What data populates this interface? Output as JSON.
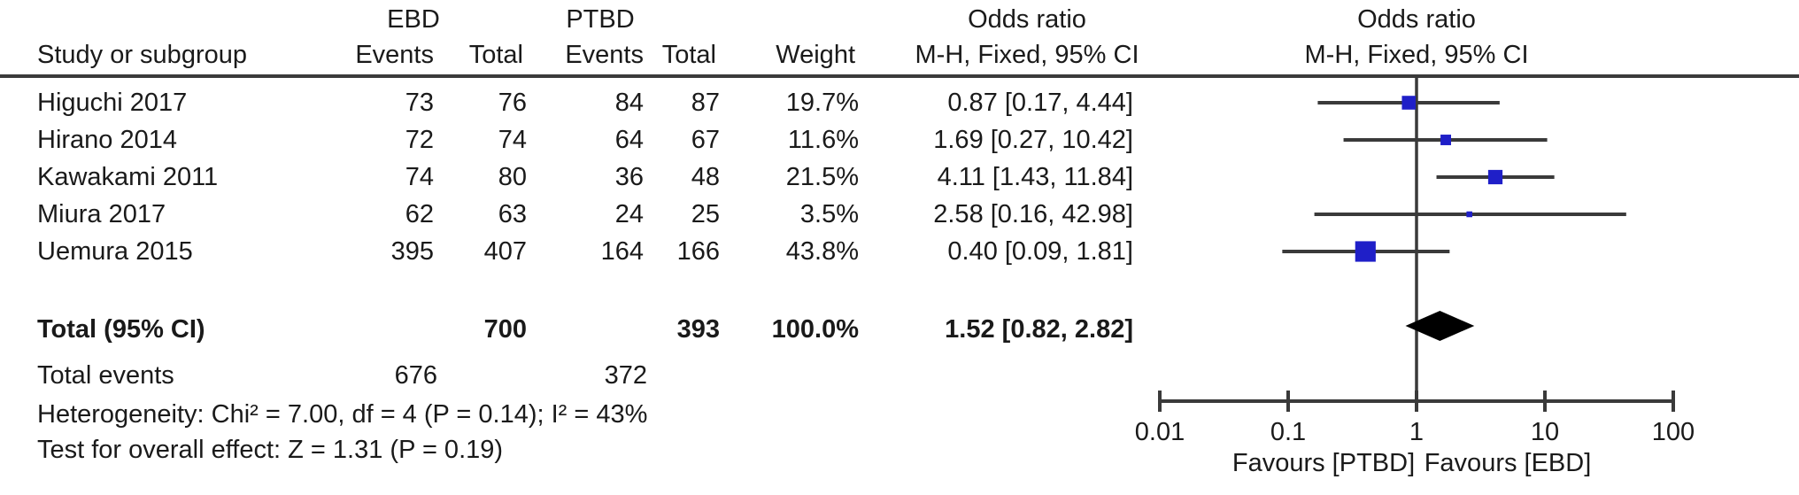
{
  "table": {
    "group_headers": {
      "ebd": "EBD",
      "ptbd": "PTBD",
      "odds_ratio_left": "Odds ratio",
      "odds_ratio_right": "Odds ratio"
    },
    "col_headers": {
      "study": "Study or subgroup",
      "ebd_events": "Events",
      "ebd_total": "Total",
      "ptbd_events": "Events",
      "ptbd_total": "Total",
      "weight": "Weight",
      "mh_left": "M-H, Fixed, 95% CI",
      "mh_right": "M-H, Fixed, 95% CI"
    },
    "rows": [
      {
        "study": "Higuchi 2017",
        "ebd_events": "73",
        "ebd_total": "76",
        "ptbd_events": "84",
        "ptbd_total": "87",
        "weight": "19.7%",
        "or_text": "0.87 [0.17, 4.44]"
      },
      {
        "study": "Hirano 2014",
        "ebd_events": "72",
        "ebd_total": "74",
        "ptbd_events": "64",
        "ptbd_total": "67",
        "weight": "11.6%",
        "or_text": "1.69 [0.27, 10.42]"
      },
      {
        "study": "Kawakami 2011",
        "ebd_events": "74",
        "ebd_total": "80",
        "ptbd_events": "36",
        "ptbd_total": "48",
        "weight": "21.5%",
        "or_text": "4.11 [1.43, 11.84]"
      },
      {
        "study": "Miura 2017",
        "ebd_events": "62",
        "ebd_total": "63",
        "ptbd_events": "24",
        "ptbd_total": "25",
        "weight": "3.5%",
        "or_text": "2.58 [0.16, 42.98]"
      },
      {
        "study": "Uemura 2015",
        "ebd_events": "395",
        "ebd_total": "407",
        "ptbd_events": "164",
        "ptbd_total": "166",
        "weight": "43.8%",
        "or_text": "0.40 [0.09, 1.81]"
      }
    ],
    "total_row": {
      "label": "Total (95% CI)",
      "ebd_total": "700",
      "ptbd_total": "393",
      "weight": "100.0%",
      "or_text": "1.52 [0.82, 2.82]"
    },
    "total_events": {
      "label": "Total events",
      "ebd": "676",
      "ptbd": "372"
    },
    "heterogeneity": "Heterogeneity: Chi² = 7.00, df = 4 (P = 0.14); I² = 43%",
    "overall_effect": "Test for overall effect: Z = 1.31 (P = 0.19)"
  },
  "chart_data": {
    "type": "scatter",
    "subtype": "forest-plot",
    "title": "Odds ratio, M-H, Fixed, 95% CI",
    "x_scale": "log10",
    "xlim": [
      0.01,
      100
    ],
    "axis_ticks": [
      0.01,
      0.1,
      1,
      10,
      100
    ],
    "axis_tick_labels": [
      "0.01",
      "0.1",
      "1",
      "10",
      "100"
    ],
    "null_line": 1,
    "studies": [
      {
        "name": "Higuchi 2017",
        "or": 0.87,
        "ci_low": 0.17,
        "ci_high": 4.44,
        "weight_pct": 19.7
      },
      {
        "name": "Hirano 2014",
        "or": 1.69,
        "ci_low": 0.27,
        "ci_high": 10.42,
        "weight_pct": 11.6
      },
      {
        "name": "Kawakami 2011",
        "or": 4.11,
        "ci_low": 1.43,
        "ci_high": 11.84,
        "weight_pct": 21.5
      },
      {
        "name": "Miura 2017",
        "or": 2.58,
        "ci_low": 0.16,
        "ci_high": 42.98,
        "weight_pct": 3.5
      },
      {
        "name": "Uemura 2015",
        "or": 0.4,
        "ci_low": 0.09,
        "ci_high": 1.81,
        "weight_pct": 43.8
      }
    ],
    "total": {
      "or": 1.52,
      "ci_low": 0.82,
      "ci_high": 2.82,
      "weight_pct": 100.0
    },
    "favours_left": "Favours [PTBD]",
    "favours_right": "Favours [EBD]",
    "legend_position": "none",
    "grid": false
  },
  "colors": {
    "marker_blue": "#1f1fc8",
    "diamond_black": "#000000",
    "line_gray": "#3a3a3a",
    "text": "#1a1a1a"
  }
}
